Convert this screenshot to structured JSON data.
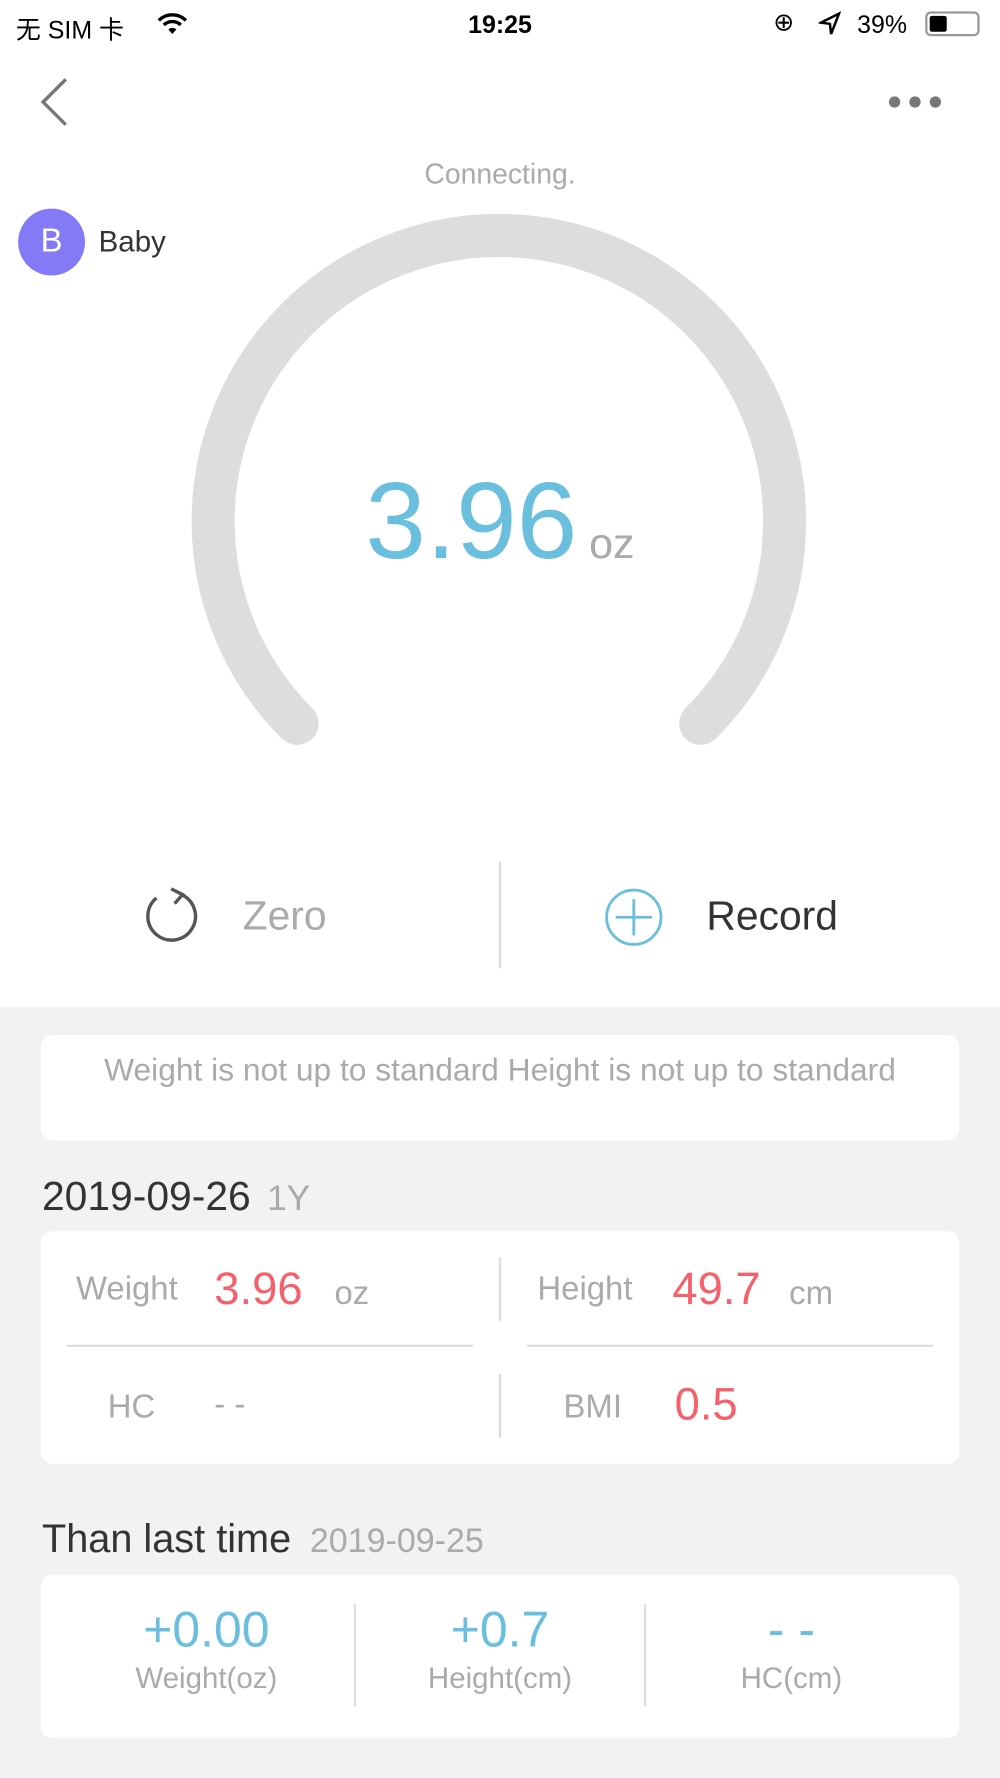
{
  "status_bar": {
    "carrier": "无 SIM 卡",
    "time": "19:25",
    "battery": "39%",
    "battery_level": 0.39
  },
  "nav": {
    "back_icon": "chevron-left-icon",
    "more_icon": "ellipsis-icon"
  },
  "connection_status": "Connecting.",
  "user": {
    "initial": "B",
    "name": "Baby",
    "avatar_color": "#8479f7"
  },
  "gauge": {
    "value": "3.96",
    "unit": "oz",
    "value_color": "#6abfdf",
    "track_color": "#dddddd"
  },
  "actions": {
    "zero_label": "Zero",
    "record_label": "Record"
  },
  "notice": "Weight is not up to standard Height is not up to standard",
  "measurement": {
    "date": "2019-09-26",
    "age": "1Y",
    "weight_label": "Weight",
    "weight_value": "3.96",
    "weight_unit": "oz",
    "height_label": "Height",
    "height_value": "49.7",
    "height_unit": "cm",
    "hc_label": "HC",
    "hc_value": "- -",
    "bmi_label": "BMI",
    "bmi_value": "0.5"
  },
  "comparison": {
    "title": "Than last time",
    "date": "2019-09-25",
    "items": [
      {
        "value": "+0.00",
        "label": "Weight(oz)"
      },
      {
        "value": "+0.7",
        "label": "Height(cm)"
      },
      {
        "value": "- -",
        "label": "HC(cm)"
      }
    ]
  },
  "colors": {
    "accent": "#6abfdf",
    "alert": "#f5606a",
    "background": "#f2f2f2"
  }
}
